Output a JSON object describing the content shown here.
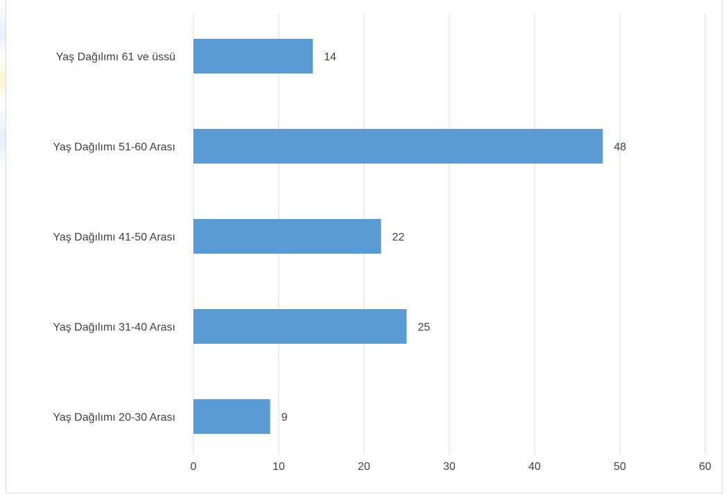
{
  "chart_data": {
    "type": "bar",
    "orientation": "horizontal",
    "categories": [
      "Yaş Dağılımı 20-30 Arası",
      "Yaş Dağılımı 31-40 Arası",
      "Yaş Dağılımı 41-50 Arası",
      "Yaş Dağılımı 51-60 Arası",
      "Yaş Dağılımı 61 ve üssü"
    ],
    "values": [
      9,
      25,
      22,
      48,
      14
    ],
    "title": "",
    "xlabel": "",
    "ylabel": "",
    "xlim": [
      0,
      60
    ],
    "xticks": [
      0,
      10,
      20,
      30,
      40,
      50,
      60
    ],
    "grid": "vertical",
    "legend": "none",
    "colors": {
      "bar": "#5b9bd5",
      "grid": "#d9d9d9",
      "text": "#404040"
    }
  }
}
